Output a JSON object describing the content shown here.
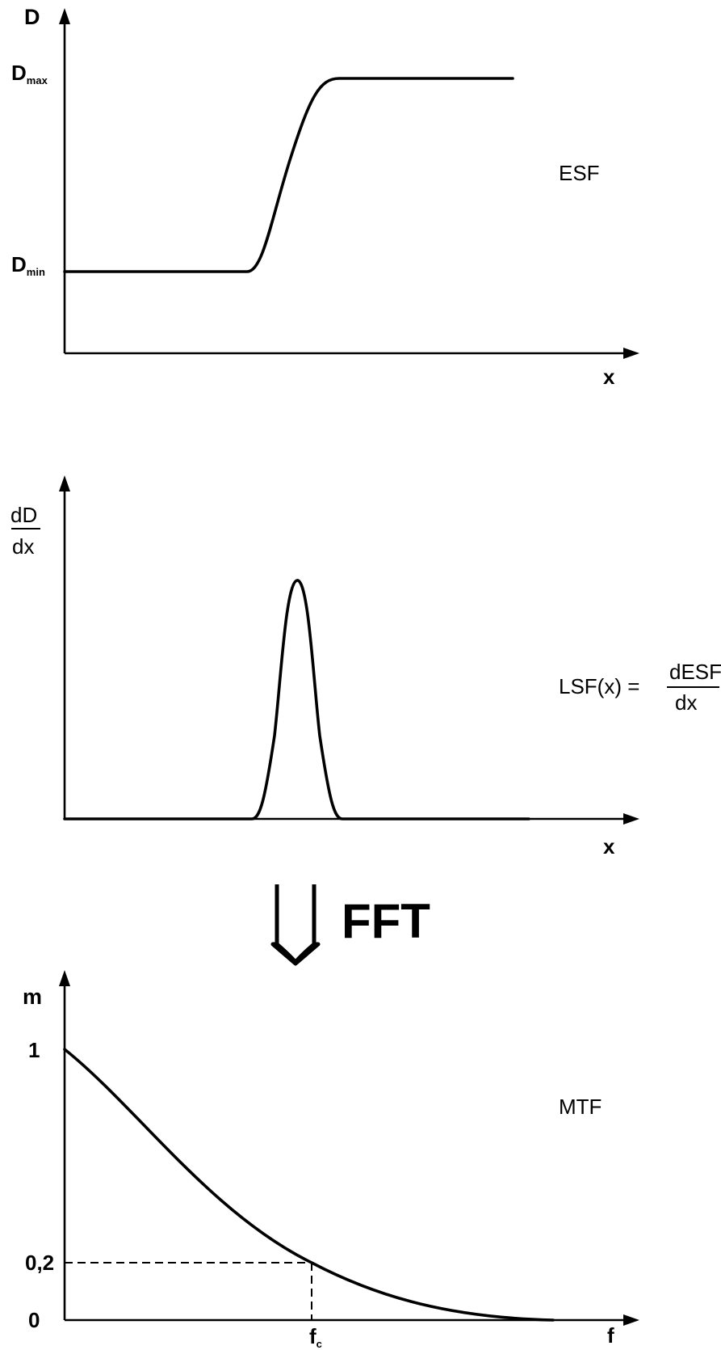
{
  "panel_esf": {
    "y_axis_label": "D",
    "dmax_main": "D",
    "dmax_sub": "max",
    "dmin_main": "D",
    "dmin_sub": "min",
    "x_axis_label": "x",
    "curve_label": "ESF"
  },
  "panel_lsf": {
    "y_axis_num": "dD",
    "y_axis_den": "dx",
    "x_axis_label": "x",
    "formula_lhs": "LSF(x) =",
    "formula_num": "dESF",
    "formula_den": "dx"
  },
  "transform": {
    "label": "FFT"
  },
  "panel_mtf": {
    "y_axis_label": "m",
    "tick_one": "1",
    "tick_point_two": "0,2",
    "tick_zero": "0",
    "fc_main": "f",
    "fc_sub": "c",
    "x_axis_label": "f",
    "curve_label": "MTF"
  }
}
